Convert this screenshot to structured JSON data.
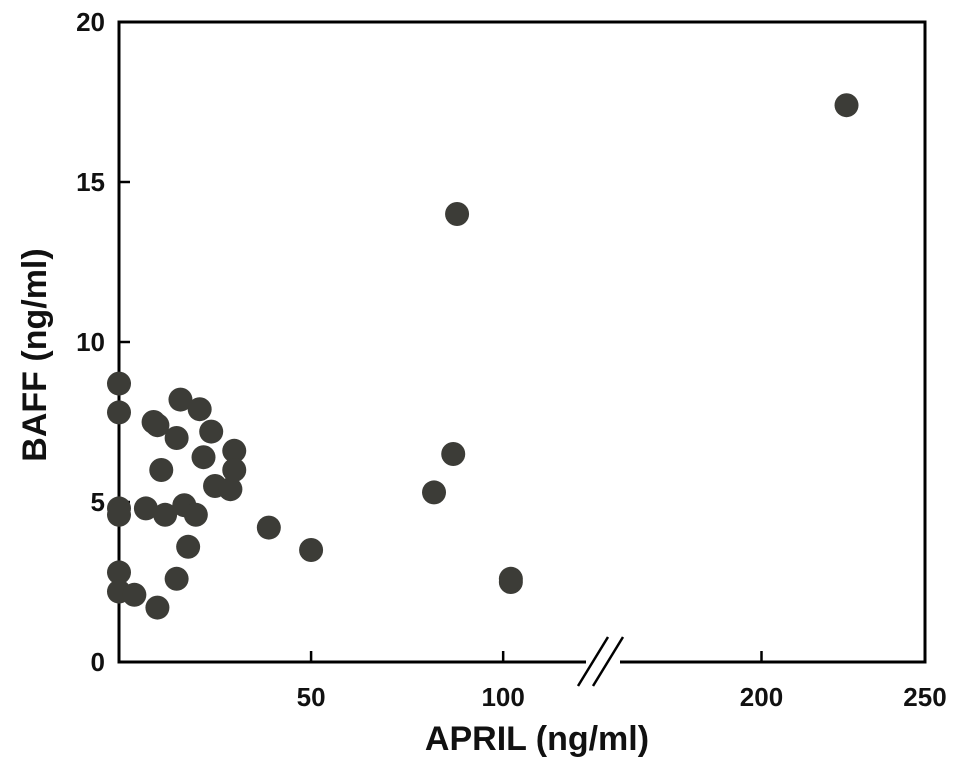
{
  "chart_data": {
    "type": "scatter",
    "title": "",
    "xlabel": "APRIL (ng/ml)",
    "ylabel": "BAFF (ng/ml)",
    "x_scale": "broken",
    "x_segments": [
      {
        "range": [
          0,
          120
        ],
        "ticks": [
          50,
          100
        ]
      },
      {
        "range": [
          150,
          250
        ],
        "ticks": [
          200,
          250
        ]
      }
    ],
    "ylim": [
      0,
      20
    ],
    "y_ticks": [
      0,
      5,
      10,
      15,
      20
    ],
    "grid": false,
    "legend": "none",
    "marker_color": "#3c3c37",
    "series": [
      {
        "points": [
          {
            "x": 0,
            "y": 8.7
          },
          {
            "x": 0,
            "y": 7.8
          },
          {
            "x": 0,
            "y": 4.8
          },
          {
            "x": 0,
            "y": 4.6
          },
          {
            "x": 0,
            "y": 2.8
          },
          {
            "x": 0,
            "y": 2.2
          },
          {
            "x": 4,
            "y": 2.1
          },
          {
            "x": 7,
            "y": 4.8
          },
          {
            "x": 9,
            "y": 7.5
          },
          {
            "x": 10,
            "y": 7.4
          },
          {
            "x": 10,
            "y": 1.7
          },
          {
            "x": 11,
            "y": 6.0
          },
          {
            "x": 12,
            "y": 4.6
          },
          {
            "x": 15,
            "y": 7.0
          },
          {
            "x": 15,
            "y": 2.6
          },
          {
            "x": 16,
            "y": 8.2
          },
          {
            "x": 17,
            "y": 4.9
          },
          {
            "x": 18,
            "y": 3.6
          },
          {
            "x": 20,
            "y": 4.6
          },
          {
            "x": 21,
            "y": 7.9
          },
          {
            "x": 22,
            "y": 6.4
          },
          {
            "x": 24,
            "y": 7.2
          },
          {
            "x": 25,
            "y": 5.5
          },
          {
            "x": 29,
            "y": 5.4
          },
          {
            "x": 30,
            "y": 6.6
          },
          {
            "x": 30,
            "y": 6.0
          },
          {
            "x": 39,
            "y": 4.2
          },
          {
            "x": 50,
            "y": 3.5
          },
          {
            "x": 82,
            "y": 5.3
          },
          {
            "x": 87,
            "y": 6.5
          },
          {
            "x": 88,
            "y": 14.0
          },
          {
            "x": 102,
            "y": 2.5
          },
          {
            "x": 102,
            "y": 2.6
          },
          {
            "x": 226,
            "y": 17.4
          }
        ]
      }
    ]
  }
}
